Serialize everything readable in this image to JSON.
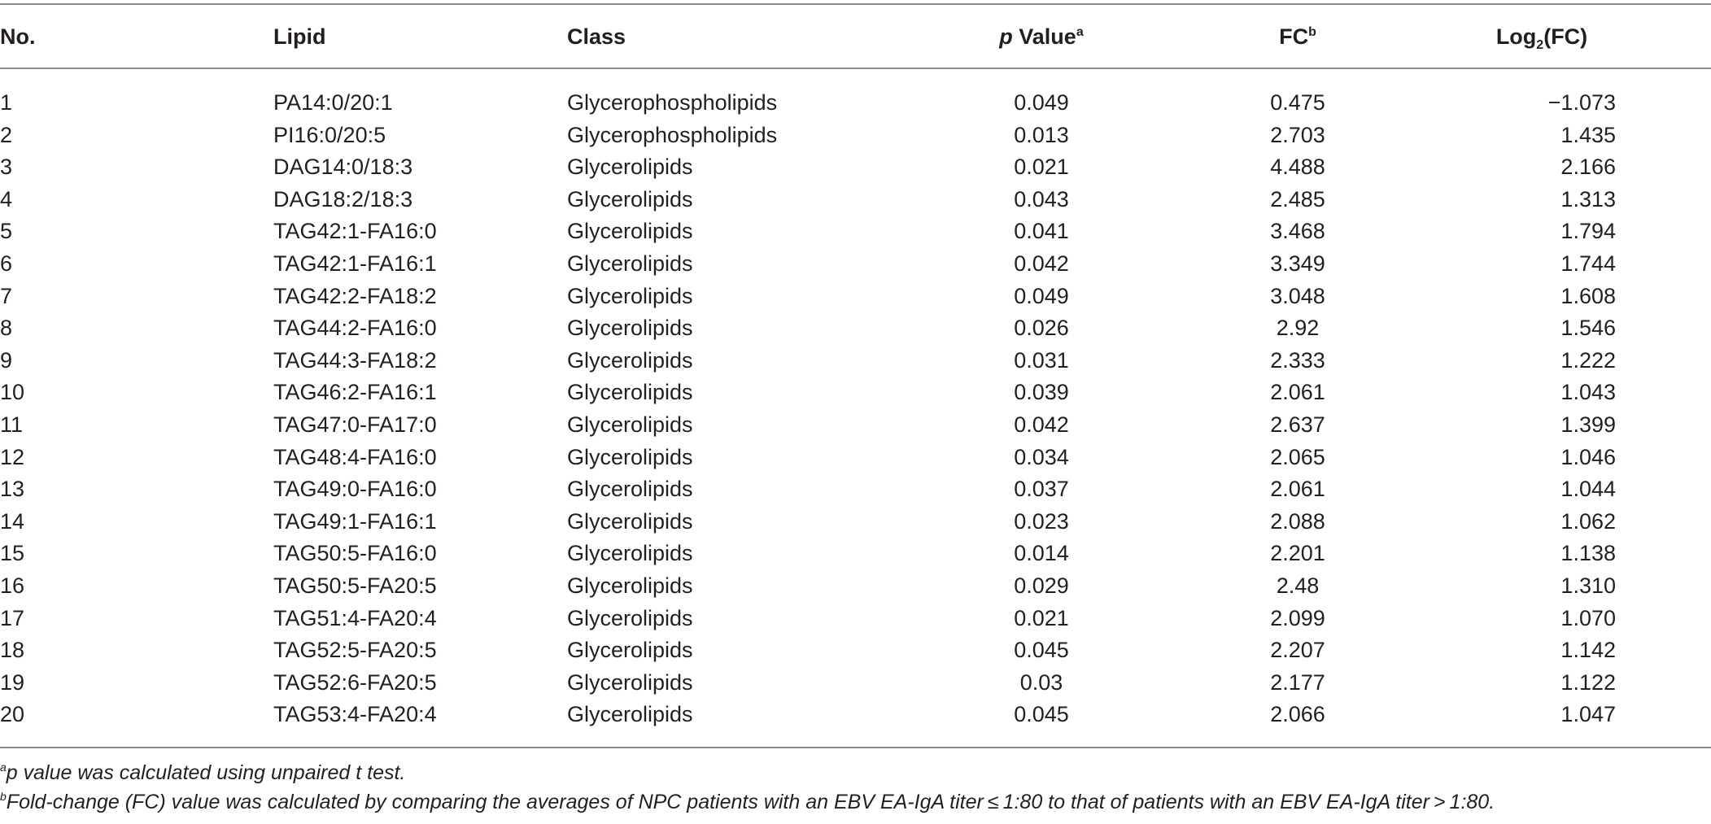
{
  "table": {
    "headers": {
      "no": "No.",
      "lipid": "Lipid",
      "class": "Class",
      "p_value_italic": "p",
      "p_value_rest": " Value",
      "p_value_mark": "a",
      "fc": "FC",
      "fc_mark": "b",
      "log_pre": "Log",
      "log_sub": "2",
      "log_post": "(FC)"
    },
    "rows": [
      {
        "no": "1",
        "lipid": "PA14:0/20:1",
        "class": "Glycerophospholipids",
        "p": "0.049",
        "fc": "0.475",
        "log2fc": "−1.073"
      },
      {
        "no": "2",
        "lipid": "PI16:0/20:5",
        "class": "Glycerophospholipids",
        "p": "0.013",
        "fc": "2.703",
        "log2fc": "1.435"
      },
      {
        "no": "3",
        "lipid": "DAG14:0/18:3",
        "class": "Glycerolipids",
        "p": "0.021",
        "fc": "4.488",
        "log2fc": "2.166"
      },
      {
        "no": "4",
        "lipid": "DAG18:2/18:3",
        "class": "Glycerolipids",
        "p": "0.043",
        "fc": "2.485",
        "log2fc": "1.313"
      },
      {
        "no": "5",
        "lipid": "TAG42:1-FA16:0",
        "class": "Glycerolipids",
        "p": "0.041",
        "fc": "3.468",
        "log2fc": "1.794"
      },
      {
        "no": "6",
        "lipid": "TAG42:1-FA16:1",
        "class": "Glycerolipids",
        "p": "0.042",
        "fc": "3.349",
        "log2fc": "1.744"
      },
      {
        "no": "7",
        "lipid": "TAG42:2-FA18:2",
        "class": "Glycerolipids",
        "p": "0.049",
        "fc": "3.048",
        "log2fc": "1.608"
      },
      {
        "no": "8",
        "lipid": "TAG44:2-FA16:0",
        "class": "Glycerolipids",
        "p": "0.026",
        "fc": "2.92",
        "log2fc": "1.546"
      },
      {
        "no": "9",
        "lipid": "TAG44:3-FA18:2",
        "class": "Glycerolipids",
        "p": "0.031",
        "fc": "2.333",
        "log2fc": "1.222"
      },
      {
        "no": "10",
        "lipid": "TAG46:2-FA16:1",
        "class": "Glycerolipids",
        "p": "0.039",
        "fc": "2.061",
        "log2fc": "1.043"
      },
      {
        "no": "11",
        "lipid": "TAG47:0-FA17:0",
        "class": "Glycerolipids",
        "p": "0.042",
        "fc": "2.637",
        "log2fc": "1.399"
      },
      {
        "no": "12",
        "lipid": "TAG48:4-FA16:0",
        "class": "Glycerolipids",
        "p": "0.034",
        "fc": "2.065",
        "log2fc": "1.046"
      },
      {
        "no": "13",
        "lipid": "TAG49:0-FA16:0",
        "class": "Glycerolipids",
        "p": "0.037",
        "fc": "2.061",
        "log2fc": "1.044"
      },
      {
        "no": "14",
        "lipid": "TAG49:1-FA16:1",
        "class": "Glycerolipids",
        "p": "0.023",
        "fc": "2.088",
        "log2fc": "1.062"
      },
      {
        "no": "15",
        "lipid": "TAG50:5-FA16:0",
        "class": "Glycerolipids",
        "p": "0.014",
        "fc": "2.201",
        "log2fc": "1.138"
      },
      {
        "no": "16",
        "lipid": "TAG50:5-FA20:5",
        "class": "Glycerolipids",
        "p": "0.029",
        "fc": "2.48",
        "log2fc": "1.310"
      },
      {
        "no": "17",
        "lipid": "TAG51:4-FA20:4",
        "class": "Glycerolipids",
        "p": "0.021",
        "fc": "2.099",
        "log2fc": "1.070"
      },
      {
        "no": "18",
        "lipid": "TAG52:5-FA20:5",
        "class": "Glycerolipids",
        "p": "0.045",
        "fc": "2.207",
        "log2fc": "1.142"
      },
      {
        "no": "19",
        "lipid": "TAG52:6-FA20:5",
        "class": "Glycerolipids",
        "p": "0.03",
        "fc": "2.177",
        "log2fc": "1.122"
      },
      {
        "no": "20",
        "lipid": "TAG53:4-FA20:4",
        "class": "Glycerolipids",
        "p": "0.045",
        "fc": "2.066",
        "log2fc": "1.047"
      }
    ]
  },
  "footnotes": {
    "a_mark": "a",
    "a_text": "p value was calculated using unpaired t test.",
    "b_mark": "b",
    "b_text": "Fold-change (FC) value was calculated by comparing the averages of NPC patients with an EBV EA-IgA titer ≤ 1:80 to that of patients with an EBV EA-IgA titer > 1:80."
  }
}
